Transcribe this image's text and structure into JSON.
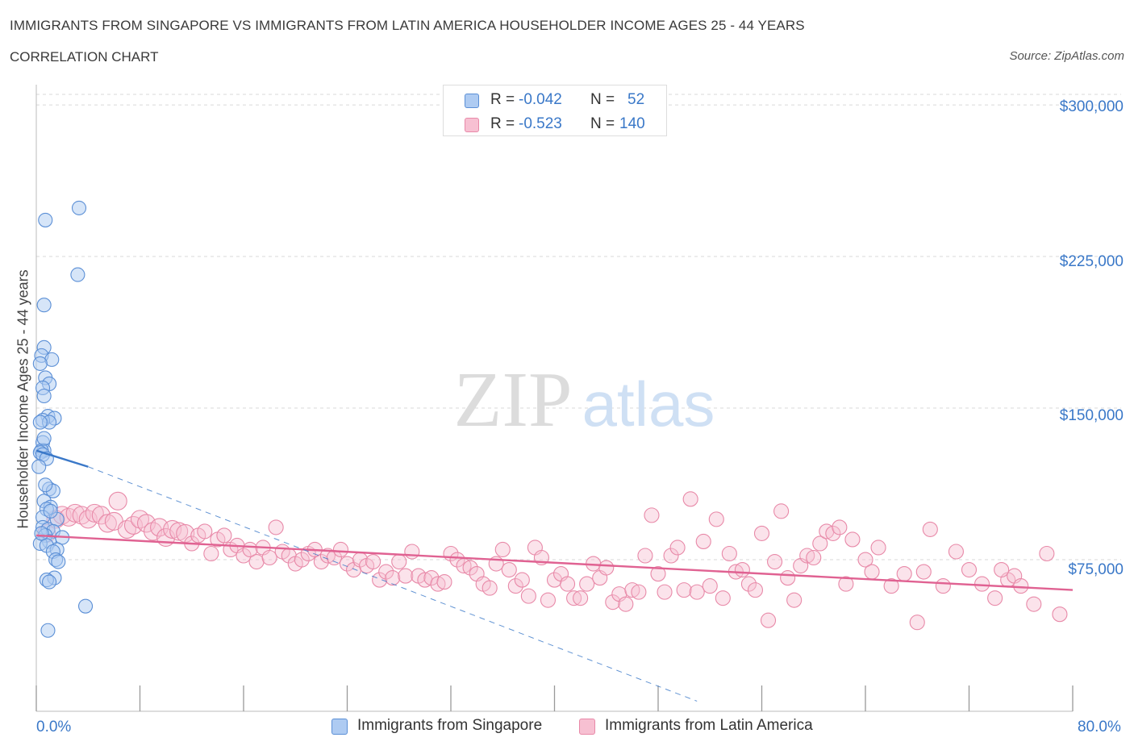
{
  "header": {
    "title": "IMMIGRANTS FROM SINGAPORE VS IMMIGRANTS FROM LATIN AMERICA HOUSEHOLDER INCOME AGES 25 - 44 YEARS",
    "subtitle": "CORRELATION CHART",
    "source": "Source: ZipAtlas.com"
  },
  "watermark": {
    "zip": "ZIP",
    "atlas": "atlas"
  },
  "legend": {
    "rows": [
      {
        "r_label": "R =",
        "r_value": "-0.042",
        "n_label": "N =",
        "n_value": "52"
      },
      {
        "r_label": "R =",
        "r_value": "-0.523",
        "n_label": "N =",
        "n_value": "140"
      }
    ]
  },
  "bottom_legend": {
    "singapore": "Immigrants from Singapore",
    "latin_america": "Immigrants from Latin America"
  },
  "colors": {
    "singapore_fill": "#aecbf2",
    "singapore_stroke": "#5b8fd6",
    "singapore_line": "#3a78c8",
    "latam_fill": "#f7c0d2",
    "latam_stroke": "#e889a8",
    "latam_line": "#e06292",
    "grid": "#d9d9d9",
    "tick_label": "#3a78c8"
  },
  "chart_data": {
    "type": "scatter",
    "title": "IMMIGRANTS FROM SINGAPORE VS IMMIGRANTS FROM LATIN AMERICA HOUSEHOLDER INCOME AGES 25 - 44 YEARS",
    "xlabel": "",
    "ylabel": "Householder Income Ages 25 - 44 years",
    "xlim": [
      0,
      80
    ],
    "ylim": [
      0,
      310000
    ],
    "x_tick_labels": [
      "0.0%",
      "80.0%"
    ],
    "y_ticks": [
      75000,
      150000,
      225000,
      300000
    ],
    "y_tick_labels": [
      "$75,000",
      "$150,000",
      "$225,000",
      "$300,000"
    ],
    "grid": true,
    "legend_position": "top-center",
    "series": [
      {
        "name": "Immigrants from Singapore",
        "R": -0.042,
        "N": 52,
        "trend_solid": [
          [
            0,
            129000
          ],
          [
            4,
            121000
          ]
        ],
        "trend_dashed": [
          [
            4,
            121000
          ],
          [
            51,
            5000
          ]
        ],
        "points": [
          [
            3.3,
            249000
          ],
          [
            0.7,
            243000
          ],
          [
            3.2,
            216000
          ],
          [
            0.6,
            201000
          ],
          [
            0.6,
            180000
          ],
          [
            0.4,
            176000
          ],
          [
            1.2,
            174000
          ],
          [
            0.3,
            172000
          ],
          [
            0.7,
            165000
          ],
          [
            1.0,
            162000
          ],
          [
            0.5,
            160000
          ],
          [
            0.6,
            156000
          ],
          [
            0.9,
            146000
          ],
          [
            1.4,
            145000
          ],
          [
            0.5,
            144000
          ],
          [
            1.0,
            143000
          ],
          [
            0.3,
            143000
          ],
          [
            0.5,
            133000
          ],
          [
            0.6,
            129000
          ],
          [
            0.4,
            129000
          ],
          [
            0.3,
            128000
          ],
          [
            0.5,
            127000
          ],
          [
            0.8,
            125000
          ],
          [
            0.2,
            121000
          ],
          [
            1.0,
            110000
          ],
          [
            1.3,
            109000
          ],
          [
            0.6,
            104000
          ],
          [
            1.1,
            101000
          ],
          [
            0.8,
            100000
          ],
          [
            0.5,
            96000
          ],
          [
            1.6,
            95000
          ],
          [
            0.5,
            91000
          ],
          [
            0.9,
            90000
          ],
          [
            1.3,
            89000
          ],
          [
            0.7,
            87000
          ],
          [
            2.0,
            86000
          ],
          [
            1.0,
            84000
          ],
          [
            0.3,
            83000
          ],
          [
            0.8,
            82000
          ],
          [
            1.6,
            80000
          ],
          [
            1.3,
            79000
          ],
          [
            1.5,
            75000
          ],
          [
            1.7,
            74000
          ],
          [
            1.4,
            66000
          ],
          [
            0.8,
            65000
          ],
          [
            1.0,
            64000
          ],
          [
            3.8,
            52000
          ],
          [
            0.9,
            40000
          ],
          [
            0.4,
            88000
          ],
          [
            1.1,
            99000
          ],
          [
            0.7,
            112000
          ],
          [
            0.6,
            135000
          ]
        ]
      },
      {
        "name": "Immigrants from Latin America",
        "R": -0.523,
        "N": 140,
        "trend": [
          [
            0,
            87000
          ],
          [
            80,
            60000
          ]
        ],
        "points": [
          [
            0.8,
            88000
          ],
          [
            1.5,
            95000
          ],
          [
            2.0,
            97000
          ],
          [
            2.5,
            96000
          ],
          [
            3.0,
            98000
          ],
          [
            3.5,
            97000
          ],
          [
            4.0,
            95000
          ],
          [
            4.5,
            98000
          ],
          [
            5.0,
            97000
          ],
          [
            5.5,
            93000
          ],
          [
            6.0,
            94000
          ],
          [
            6.3,
            104000
          ],
          [
            7.0,
            90000
          ],
          [
            7.5,
            92000
          ],
          [
            8.0,
            95000
          ],
          [
            8.5,
            93000
          ],
          [
            9.0,
            89000
          ],
          [
            9.5,
            91000
          ],
          [
            10.0,
            86000
          ],
          [
            10.5,
            90000
          ],
          [
            11.0,
            89000
          ],
          [
            11.5,
            88000
          ],
          [
            12.0,
            83000
          ],
          [
            12.5,
            87000
          ],
          [
            13.0,
            89000
          ],
          [
            13.5,
            78000
          ],
          [
            14.0,
            85000
          ],
          [
            14.5,
            87000
          ],
          [
            15.0,
            80000
          ],
          [
            15.5,
            82000
          ],
          [
            16.0,
            77000
          ],
          [
            16.5,
            80000
          ],
          [
            17.0,
            74000
          ],
          [
            17.5,
            81000
          ],
          [
            18.0,
            76000
          ],
          [
            18.5,
            91000
          ],
          [
            19.0,
            79000
          ],
          [
            19.5,
            77000
          ],
          [
            20.0,
            73000
          ],
          [
            20.5,
            75000
          ],
          [
            21.0,
            78000
          ],
          [
            21.5,
            80000
          ],
          [
            22.0,
            74000
          ],
          [
            22.5,
            77000
          ],
          [
            23.0,
            76000
          ],
          [
            23.5,
            80000
          ],
          [
            24.0,
            73000
          ],
          [
            24.5,
            70000
          ],
          [
            25.0,
            75000
          ],
          [
            25.5,
            72000
          ],
          [
            26.0,
            74000
          ],
          [
            26.5,
            65000
          ],
          [
            27.0,
            69000
          ],
          [
            27.5,
            66000
          ],
          [
            28.0,
            74000
          ],
          [
            28.5,
            67000
          ],
          [
            29.0,
            79000
          ],
          [
            29.5,
            67000
          ],
          [
            30.0,
            65000
          ],
          [
            30.5,
            66000
          ],
          [
            31.0,
            63000
          ],
          [
            31.5,
            64000
          ],
          [
            32.0,
            78000
          ],
          [
            32.5,
            75000
          ],
          [
            33.0,
            72000
          ],
          [
            33.5,
            71000
          ],
          [
            34.0,
            68000
          ],
          [
            34.5,
            63000
          ],
          [
            35.0,
            61000
          ],
          [
            35.5,
            73000
          ],
          [
            36.0,
            80000
          ],
          [
            36.5,
            70000
          ],
          [
            37.0,
            62000
          ],
          [
            37.5,
            65000
          ],
          [
            38.0,
            57000
          ],
          [
            38.5,
            81000
          ],
          [
            39.0,
            76000
          ],
          [
            39.5,
            55000
          ],
          [
            40.0,
            65000
          ],
          [
            40.5,
            68000
          ],
          [
            41.0,
            63000
          ],
          [
            41.5,
            56000
          ],
          [
            42.0,
            56000
          ],
          [
            42.5,
            63000
          ],
          [
            43.0,
            73000
          ],
          [
            43.5,
            66000
          ],
          [
            44.0,
            71000
          ],
          [
            44.5,
            54000
          ],
          [
            45.0,
            58000
          ],
          [
            45.5,
            53000
          ],
          [
            46.0,
            60000
          ],
          [
            46.5,
            59000
          ],
          [
            47.0,
            77000
          ],
          [
            47.5,
            97000
          ],
          [
            48.0,
            68000
          ],
          [
            48.5,
            59000
          ],
          [
            49.0,
            77000
          ],
          [
            49.5,
            81000
          ],
          [
            50.0,
            60000
          ],
          [
            50.5,
            105000
          ],
          [
            51.0,
            59000
          ],
          [
            51.5,
            84000
          ],
          [
            52.0,
            62000
          ],
          [
            52.5,
            95000
          ],
          [
            53.0,
            56000
          ],
          [
            53.5,
            78000
          ],
          [
            54.0,
            69000
          ],
          [
            54.5,
            70000
          ],
          [
            55.0,
            63000
          ],
          [
            55.5,
            60000
          ],
          [
            56.0,
            88000
          ],
          [
            56.5,
            45000
          ],
          [
            57.0,
            74000
          ],
          [
            57.5,
            99000
          ],
          [
            58.0,
            66000
          ],
          [
            58.5,
            55000
          ],
          [
            59.0,
            72000
          ],
          [
            59.5,
            77000
          ],
          [
            60.0,
            76000
          ],
          [
            60.5,
            83000
          ],
          [
            61.0,
            89000
          ],
          [
            61.5,
            88000
          ],
          [
            62.0,
            91000
          ],
          [
            62.5,
            63000
          ],
          [
            63.0,
            85000
          ],
          [
            64.0,
            75000
          ],
          [
            64.5,
            69000
          ],
          [
            65.0,
            81000
          ],
          [
            66.0,
            62000
          ],
          [
            67.0,
            68000
          ],
          [
            68.0,
            44000
          ],
          [
            68.5,
            69000
          ],
          [
            69.0,
            90000
          ],
          [
            70.0,
            62000
          ],
          [
            71.0,
            79000
          ],
          [
            72.0,
            70000
          ],
          [
            73.0,
            63000
          ],
          [
            74.0,
            56000
          ],
          [
            75.0,
            65000
          ],
          [
            75.5,
            67000
          ],
          [
            76.0,
            62000
          ],
          [
            77.0,
            53000
          ],
          [
            78.0,
            78000
          ],
          [
            79.0,
            48000
          ],
          [
            74.5,
            70000
          ]
        ]
      }
    ]
  }
}
